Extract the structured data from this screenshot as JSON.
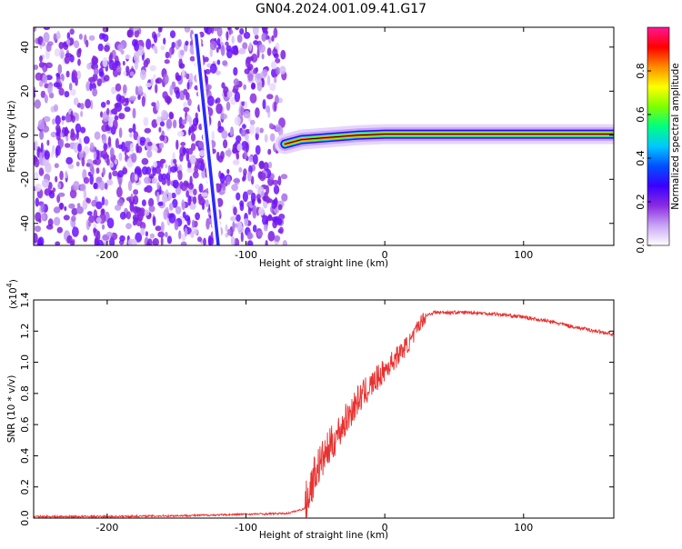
{
  "title": "GN04.2024.001.09.41.G17",
  "chart_data": [
    {
      "type": "heatmap",
      "xlabel": "Height of straight line (km)",
      "ylabel": "Frequency (Hz)",
      "xlim": [
        -253,
        165
      ],
      "ylim": [
        -50,
        49
      ],
      "xticks": [
        -200,
        -100,
        0,
        100
      ],
      "yticks": [
        -40,
        -20,
        0,
        20,
        40
      ],
      "noise_region_x": [
        -253,
        -72
      ],
      "diagonal_feature": {
        "from": [
          -136,
          46
        ],
        "to": [
          -120,
          -50
        ]
      },
      "signal_line": [
        {
          "x": -72,
          "y": -4
        },
        {
          "x": -60,
          "y": -2
        },
        {
          "x": -40,
          "y": -1
        },
        {
          "x": -20,
          "y": 0
        },
        {
          "x": 0,
          "y": 0.5
        },
        {
          "x": 40,
          "y": 0.5
        },
        {
          "x": 100,
          "y": 0.5
        },
        {
          "x": 165,
          "y": 0.5
        }
      ],
      "colorbar": {
        "label": "Normalized spectral amplitude",
        "range": [
          0,
          1
        ],
        "ticks": [
          "0.0",
          "0.2",
          "0.4",
          "0.6",
          "0.8"
        ],
        "colors": [
          "#ffffff",
          "#c9a5f5",
          "#8a2be2",
          "#3a00ff",
          "#0050ff",
          "#00c8ff",
          "#00ff80",
          "#7fff00",
          "#ffff00",
          "#ff8c00",
          "#ff0000",
          "#ff1493"
        ]
      },
      "grid": false
    },
    {
      "type": "line",
      "xlabel": "Height of straight line (km)",
      "ylabel": "SNR (10 * v/v)",
      "multiplier": "(x10",
      "multiplier_exp": "4",
      "multiplier_close": ")",
      "xlim": [
        -253,
        165
      ],
      "ylim": [
        0,
        1.4
      ],
      "xticks": [
        -200,
        -100,
        0,
        100
      ],
      "yticks": [
        0.0,
        0.2,
        0.4,
        0.6,
        0.8,
        1.0,
        1.2,
        1.4
      ],
      "ytick_labels": [
        "0.0",
        "0.2",
        "0.4",
        "0.6",
        "0.8",
        "1.0",
        "1.2",
        "1.4"
      ],
      "color": "#e8312f",
      "series": [
        {
          "x": [
            -253,
            -200,
            -150,
            -120,
            -100,
            -70,
            -58,
            -55,
            -50,
            -40,
            -30,
            -20,
            -10,
            0,
            10,
            20,
            25,
            30,
            35,
            40,
            60,
            80,
            100,
            120,
            140,
            165
          ],
          "y": [
            0.01,
            0.01,
            0.015,
            0.02,
            0.025,
            0.03,
            0.06,
            0.15,
            0.3,
            0.45,
            0.6,
            0.75,
            0.85,
            0.95,
            1.05,
            1.15,
            1.25,
            1.3,
            1.32,
            1.32,
            1.32,
            1.31,
            1.29,
            1.26,
            1.22,
            1.18
          ]
        }
      ],
      "grid": false
    }
  ]
}
